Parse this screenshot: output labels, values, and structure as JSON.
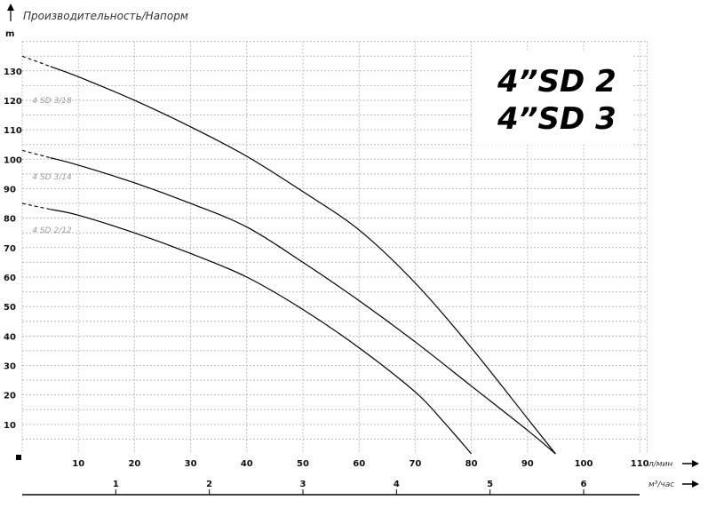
{
  "chart_data": {
    "type": "line",
    "title": "Производительность/Напорм",
    "model_title": [
      "4”SD 2",
      "4”SD 3"
    ],
    "ylabel": "m",
    "xlabel": "л/мин",
    "x2label": "м³/час",
    "xlim": [
      0,
      111
    ],
    "ylim": [
      0,
      140
    ],
    "xticks": [
      10,
      20,
      30,
      40,
      50,
      60,
      70,
      80,
      90,
      100,
      110
    ],
    "yticks": [
      10,
      20,
      30,
      40,
      50,
      60,
      70,
      80,
      90,
      100,
      110,
      120,
      130
    ],
    "x2ticks": [
      1,
      2,
      3,
      4,
      5,
      6
    ],
    "grid": true,
    "series": [
      {
        "name": "4 SD 3/18",
        "x": [
          0,
          10,
          20,
          30,
          40,
          50,
          60,
          70,
          80,
          90,
          95
        ],
        "y": [
          135,
          128,
          120,
          111,
          101,
          89,
          76,
          58,
          36,
          12,
          0
        ]
      },
      {
        "name": "4 SD 3/14",
        "x": [
          0,
          10,
          20,
          30,
          40,
          50,
          60,
          70,
          80,
          90,
          95
        ],
        "y": [
          103,
          98,
          92,
          85,
          77,
          65,
          52,
          38,
          23,
          8,
          0
        ]
      },
      {
        "name": "4 SD 2/12",
        "x": [
          0,
          10,
          20,
          30,
          40,
          50,
          60,
          70,
          75,
          80
        ],
        "y": [
          85,
          81,
          75,
          68,
          60,
          49,
          36,
          21,
          11,
          0
        ]
      }
    ]
  }
}
